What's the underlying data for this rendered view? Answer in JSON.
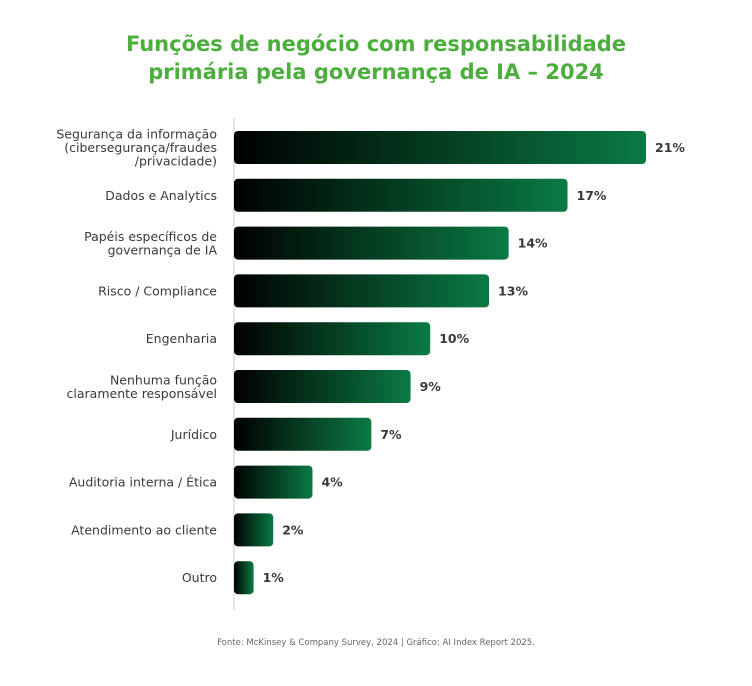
{
  "title_line1": "Funções de negócio com responsabilidade",
  "title_line2": "primária pela governança de IA – 2024",
  "source": "Fonte: McKinsey & Company Survey, 2024 | Gráfico: AI Index Report 2025.",
  "colors": {
    "title": "#4cae3c",
    "bar_start": "#000000",
    "bar_end": "#0a7a44",
    "text": "#3a3a3a",
    "axis": "#c8c8c8"
  },
  "chart_data": {
    "type": "bar",
    "orientation": "horizontal",
    "title": "Funções de negócio com responsabilidade primária pela governança de IA – 2024",
    "categories": [
      [
        "Segurança da informação",
        "(cibersegurança/fraudes",
        "/privacidade)"
      ],
      [
        "Dados e Analytics"
      ],
      [
        "Papéis específicos de",
        "governança de IA"
      ],
      [
        "Risco / Compliance"
      ],
      [
        "Engenharia"
      ],
      [
        "Nenhuma função",
        "claramente responsável"
      ],
      [
        "Jurídico"
      ],
      [
        "Auditoria interna / Ética"
      ],
      [
        "Atendimento ao cliente"
      ],
      [
        "Outro"
      ]
    ],
    "values": [
      21,
      17,
      14,
      13,
      10,
      9,
      7,
      4,
      2,
      1
    ],
    "value_labels": [
      "21%",
      "17%",
      "14%",
      "13%",
      "10%",
      "9%",
      "7%",
      "4%",
      "2%",
      "1%"
    ],
    "unit": "%",
    "xlim": [
      0,
      21
    ],
    "grid": false,
    "legend": "none"
  }
}
